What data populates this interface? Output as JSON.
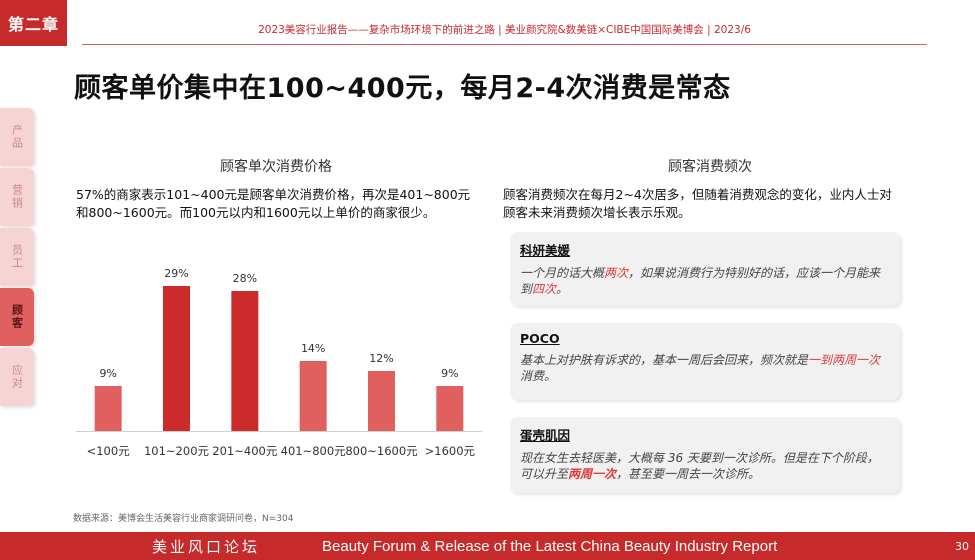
{
  "chapter": "第二章",
  "header": "2023美容行业报告——复杂市场环境下的前进之路   |   美业颜究院&数美链×CIBE中国国际美博会   |   2023/6",
  "title": "顾客单价集中在100~400元，每月2-4次消费是常态",
  "side_tabs": [
    {
      "label": "产品",
      "active": false
    },
    {
      "label": "营销",
      "active": false
    },
    {
      "label": "员工",
      "active": false
    },
    {
      "label": "顾客",
      "active": true
    },
    {
      "label": "应对",
      "active": false
    }
  ],
  "left": {
    "section_title": "顾客单次消费价格",
    "description": "57%的商家表示101~400元是顾客单次消费价格，再次是401~800元和800~1600元。而100元以内和1600元以上单价的商家很少。",
    "source": "数据来源：美博会生活美容行业商家调研问卷，N=304"
  },
  "chart_data": {
    "type": "bar",
    "categories": [
      "<100元",
      "101~200元",
      "201~400元",
      "401~800元",
      "800~1600元",
      ">1600元"
    ],
    "values": [
      9,
      29,
      28,
      14,
      12,
      9
    ],
    "labels": [
      "9%",
      "29%",
      "28%",
      "14%",
      "12%",
      "9%"
    ],
    "highlight": [
      false,
      true,
      true,
      false,
      false,
      false
    ],
    "colors": {
      "normal": "#e06060",
      "highlight": "#cc2b2b"
    },
    "ylim": [
      0,
      32
    ],
    "title": "",
    "xlabel": "",
    "ylabel": ""
  },
  "right": {
    "section_title": "顾客消费频次",
    "description": "顾客消费频次在每月2~4次居多，但随着消费观念的变化，业内人士对顾客未来消费频次增长表示乐观。",
    "quotes": [
      {
        "name": "科妍美媛",
        "parts": [
          {
            "t": "一个月的话大概",
            "hl": false
          },
          {
            "t": "两次",
            "hl": true
          },
          {
            "t": "，如果说消费行为特别好的话，应该一个月能来到",
            "hl": false
          },
          {
            "t": "四次",
            "hl": true
          },
          {
            "t": "。",
            "hl": false
          }
        ]
      },
      {
        "name": "POCO",
        "parts": [
          {
            "t": "基本上对护肤有诉求的，基本一周后会回来，频次就是",
            "hl": false
          },
          {
            "t": "一到两周一次",
            "hl": true
          },
          {
            "t": "消费。",
            "hl": false
          }
        ]
      },
      {
        "name": "蛋壳肌因",
        "parts": [
          {
            "t": "现在女生去轻医美，大概每 36 天要到一次诊所。但是在下个阶段，可以升至",
            "hl": false
          },
          {
            "t": "两周一次",
            "hl": true,
            "bold": true
          },
          {
            "t": "，甚至要一周去一次诊所。",
            "hl": false
          }
        ]
      }
    ]
  },
  "footer": {
    "cn": "美业风口论坛",
    "en": "Beauty Forum & Release of the Latest China Beauty Industry Report",
    "page": "30"
  }
}
